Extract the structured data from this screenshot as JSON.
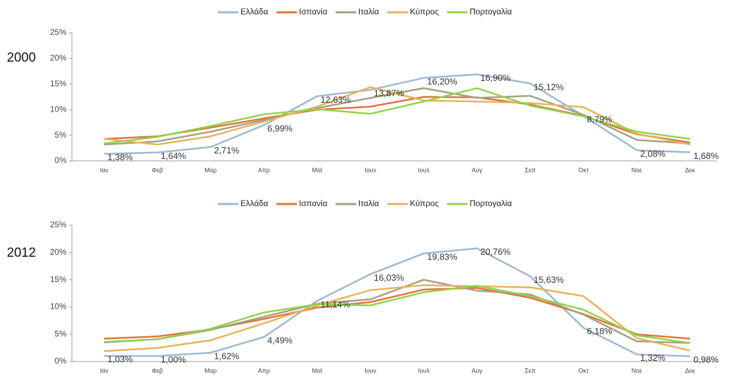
{
  "chart_data": [
    {
      "type": "line",
      "label": "2000",
      "categories": [
        "Ιαν",
        "Φεβ",
        "Μαρ",
        "Απρ",
        "Μαϊ",
        "Ιουν",
        "Ιουλ",
        "Αυγ",
        "Σεπ",
        "Οκτ",
        "Νοε",
        "Δεκ"
      ],
      "ylim": [
        0,
        25
      ],
      "yticks": [
        {
          "value": 0,
          "label": "0%"
        },
        {
          "value": 5,
          "label": "5%"
        },
        {
          "value": 10,
          "label": "10%"
        },
        {
          "value": 15,
          "label": "15%"
        },
        {
          "value": 20,
          "label": "20%"
        },
        {
          "value": 25,
          "label": "25%"
        }
      ],
      "legend": "top",
      "series": [
        {
          "name": "Ελλάδα",
          "color": "#9db8d2",
          "values": [
            1.38,
            1.64,
            2.71,
            6.99,
            12.63,
            13.87,
            16.2,
            16.9,
            15.12,
            8.79,
            2.08,
            1.68
          ],
          "value_labels": [
            "1,38%",
            "1,64%",
            "2,71%",
            "6,99%",
            "12,63%",
            "13,87%",
            "16,20%",
            "16,90%",
            "15,12%",
            "8,79%",
            "2,08%",
            "1,68%"
          ]
        },
        {
          "name": "Ισπανία",
          "color": "#e8703a",
          "values": [
            4.3,
            4.8,
            6.5,
            8.3,
            10.0,
            10.6,
            12.5,
            12.4,
            11.0,
            8.8,
            5.2,
            3.6
          ]
        },
        {
          "name": "Ιταλία",
          "color": "#a5a07e",
          "values": [
            3.2,
            3.8,
            5.7,
            8.0,
            10.3,
            12.3,
            14.2,
            12.3,
            12.7,
            9.0,
            4.1,
            3.4
          ]
        },
        {
          "name": "Κύπρος",
          "color": "#e6b35a",
          "values": [
            4.3,
            3.2,
            4.8,
            7.7,
            10.6,
            14.4,
            11.8,
            11.6,
            11.3,
            10.5,
            5.3,
            3.2
          ]
        },
        {
          "name": "Πορτογαλία",
          "color": "#8ed44a",
          "values": [
            3.4,
            4.7,
            6.8,
            9.1,
            10.1,
            9.2,
            11.6,
            14.2,
            10.8,
            8.7,
            5.7,
            4.3
          ]
        }
      ]
    },
    {
      "type": "line",
      "label": "2012",
      "categories": [
        "Ιαν",
        "Φεβ",
        "Μαρ",
        "Απρ",
        "Μαϊ",
        "Ιουν",
        "Ιουλ",
        "Αυγ",
        "Σεπ",
        "Οκτ",
        "Νοε",
        "Δεκ"
      ],
      "ylim": [
        0,
        25
      ],
      "yticks": [
        {
          "value": 0,
          "label": "0%"
        },
        {
          "value": 5,
          "label": "5%"
        },
        {
          "value": 10,
          "label": "10%"
        },
        {
          "value": 15,
          "label": "15%"
        },
        {
          "value": 20,
          "label": "20%"
        },
        {
          "value": 25,
          "label": "25%"
        }
      ],
      "legend": "top",
      "series": [
        {
          "name": "Ελλάδα",
          "color": "#9db8d2",
          "values": [
            1.03,
            1.0,
            1.62,
            4.49,
            11.14,
            16.03,
            19.83,
            20.76,
            15.63,
            6.18,
            1.32,
            0.98
          ],
          "value_labels": [
            "1,03%",
            "1,00%",
            "1,62%",
            "4,49%",
            "11,14%",
            "16,03%",
            "19,83%",
            "20,76%",
            "15,63%",
            "6,18%",
            "1,32%",
            "0,98%"
          ]
        },
        {
          "name": "Ισπανία",
          "color": "#e8703a",
          "values": [
            4.2,
            4.6,
            5.9,
            7.8,
            9.9,
            10.9,
            13.2,
            13.5,
            11.7,
            8.7,
            5.0,
            4.2
          ]
        },
        {
          "name": "Ιταλία",
          "color": "#a5a07e",
          "values": [
            3.5,
            4.1,
            5.8,
            8.2,
            10.6,
            11.4,
            15.0,
            13.0,
            12.3,
            8.6,
            3.7,
            3.4
          ]
        },
        {
          "name": "Κύπρος",
          "color": "#e6b35a",
          "values": [
            1.9,
            2.5,
            3.9,
            7.0,
            10.3,
            13.1,
            14.0,
            13.8,
            13.6,
            12.0,
            4.3,
            2.0
          ]
        },
        {
          "name": "Πορτογαλία",
          "color": "#8ed44a",
          "values": [
            3.6,
            4.1,
            6.0,
            9.0,
            10.5,
            10.3,
            12.7,
            13.9,
            12.0,
            9.5,
            4.8,
            3.4
          ]
        }
      ]
    }
  ]
}
